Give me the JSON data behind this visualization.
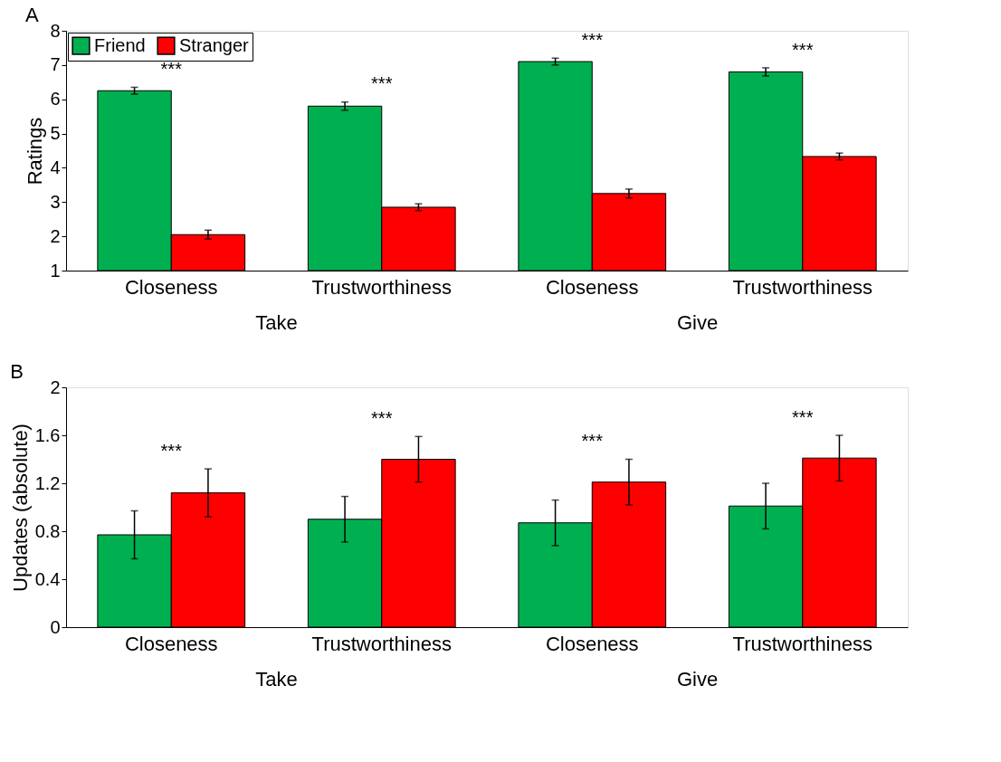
{
  "chart_data": [
    {
      "type": "bar",
      "title": "A",
      "ylabel": "Ratings",
      "categories": [
        "Closeness",
        "Trustworthiness",
        "Closeness",
        "Trustworthiness"
      ],
      "series": [
        {
          "name": "Friend",
          "color": "#00b050",
          "values": [
            6.25,
            5.8,
            7.1,
            6.8
          ],
          "errors": [
            0.1,
            0.12,
            0.1,
            0.12
          ]
        },
        {
          "name": "Stranger",
          "color": "#ff0000",
          "values": [
            2.05,
            2.85,
            3.25,
            4.33
          ],
          "errors": [
            0.13,
            0.1,
            0.13,
            0.1
          ]
        }
      ],
      "ylim": [
        1,
        8
      ],
      "yticks": [
        1,
        2,
        3,
        4,
        5,
        6,
        7,
        8
      ],
      "grid": false,
      "legend": "top left",
      "annotations": [
        "***",
        "***",
        "***",
        "***",
        "Take",
        "Give"
      ]
    },
    {
      "type": "bar",
      "title": "B",
      "ylabel": "Updates (absolute)",
      "categories": [
        "Closeness",
        "Trustworthiness",
        "Closeness",
        "Trustworthiness"
      ],
      "series": [
        {
          "name": "Friend",
          "color": "#00b050",
          "values": [
            0.77,
            0.9,
            0.87,
            1.01
          ],
          "errors": [
            0.2,
            0.19,
            0.19,
            0.19
          ]
        },
        {
          "name": "Stranger",
          "color": "#ff0000",
          "values": [
            1.12,
            1.4,
            1.21,
            1.41
          ],
          "errors": [
            0.2,
            0.19,
            0.19,
            0.19
          ]
        }
      ],
      "ylim": [
        0,
        2
      ],
      "yticks": [
        0,
        0.4,
        0.8,
        1.2,
        1.6,
        2
      ],
      "grid": false,
      "legend": false,
      "annotations": [
        "***",
        "***",
        "***",
        "***",
        "Take",
        "Give"
      ]
    }
  ]
}
